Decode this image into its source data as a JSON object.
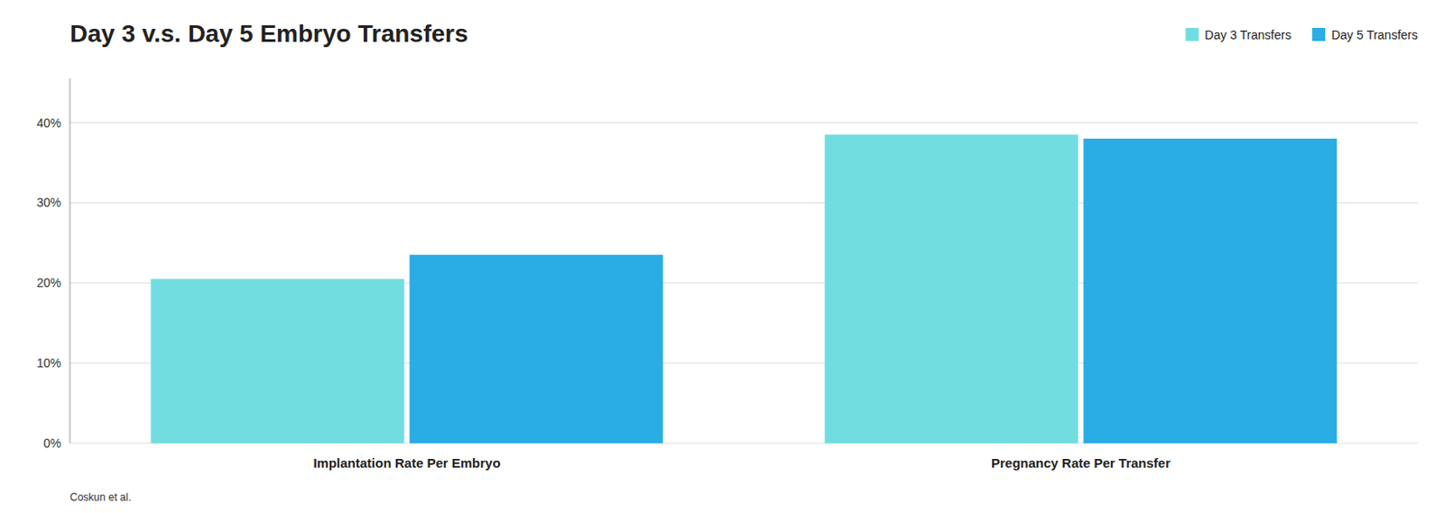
{
  "chart_data": {
    "type": "bar",
    "title": "Day 3 v.s. Day 5 Embryo Transfers",
    "categories": [
      "Implantation Rate Per Embryo",
      "Pregnancy Rate Per Transfer"
    ],
    "series": [
      {
        "name": "Day 3 Transfers",
        "color": "#72DDE0",
        "values": [
          0.205,
          0.385
        ]
      },
      {
        "name": "Day 5 Transfers",
        "color": "#2AACE4",
        "values": [
          0.235,
          0.38
        ]
      }
    ],
    "ylim": [
      0,
      0.455
    ],
    "yticks": [
      {
        "value": 0,
        "label": "0%"
      },
      {
        "value": 0.1,
        "label": "10%"
      },
      {
        "value": 0.2,
        "label": "20%"
      },
      {
        "value": 0.3,
        "label": "30%"
      },
      {
        "value": 0.4,
        "label": "40%"
      }
    ],
    "grid": true,
    "legend": "upper right",
    "footnote": "Coskun et al."
  }
}
